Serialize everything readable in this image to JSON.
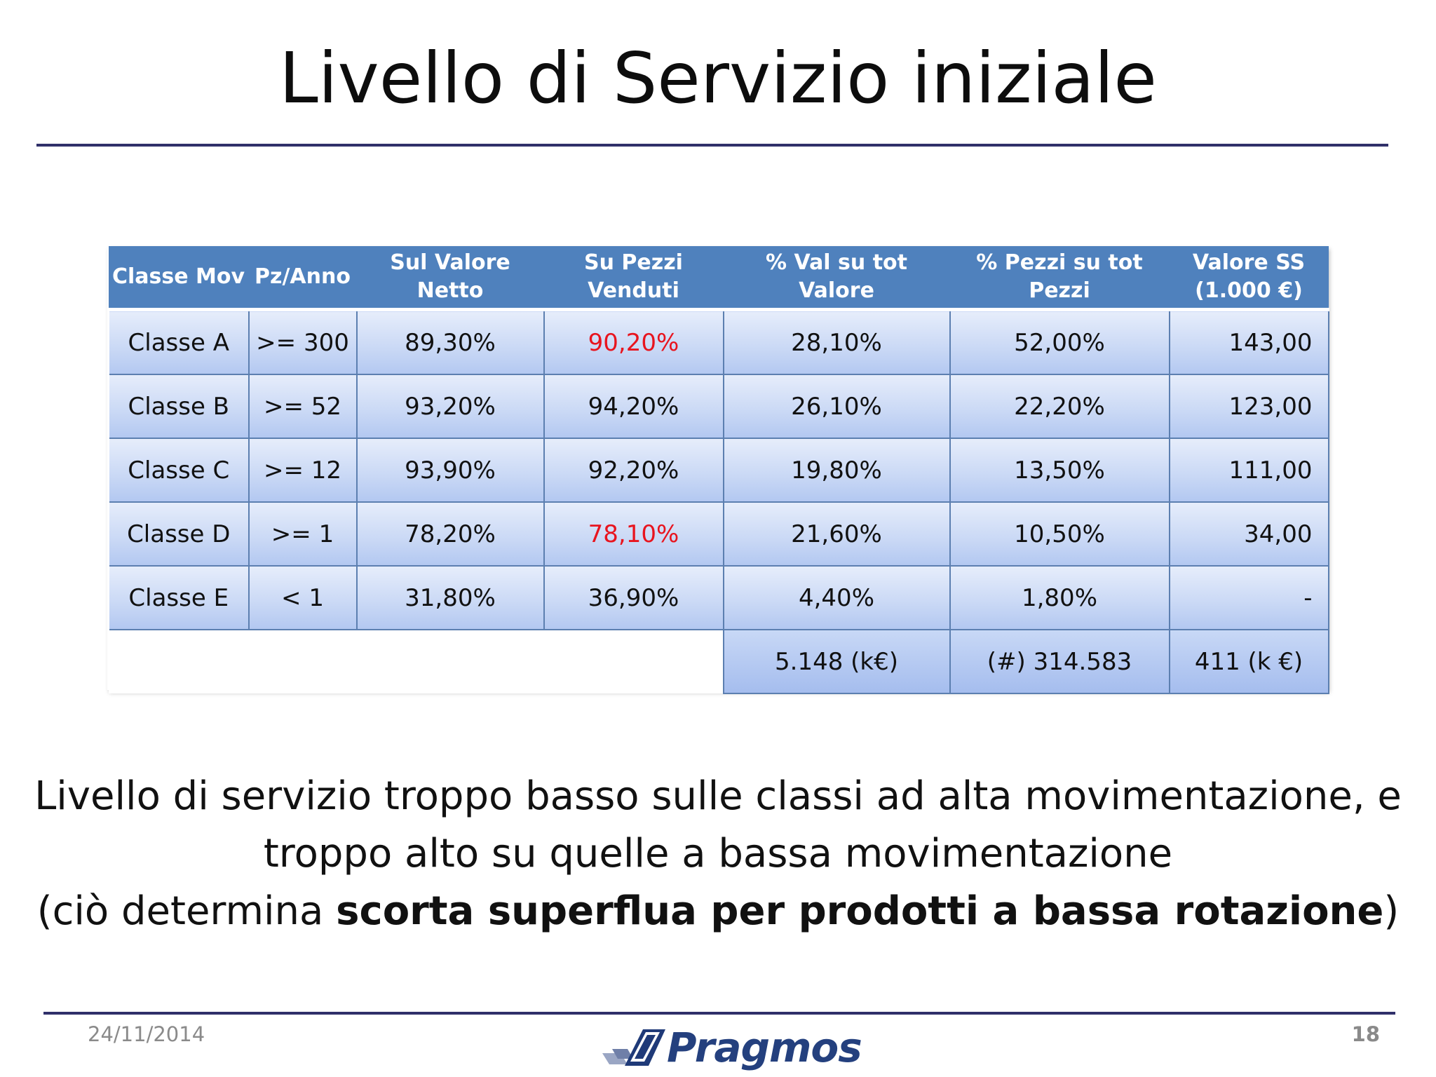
{
  "slide": {
    "title": "Livello di Servizio iniziale",
    "date": "24/11/2014",
    "page_number": "18",
    "logo_text": "Pragmos"
  },
  "table": {
    "headers": [
      "Classe Mov",
      "Pz/Anno",
      "Sul Valore Netto",
      "Su Pezzi Venduti",
      "% Val su tot Valore",
      "% Pezzi su tot Pezzi",
      "Valore SS",
      "(1.000 €)"
    ],
    "rows": [
      {
        "classe": "Classe A",
        "pz": ">= 300",
        "valore_netto": "89,30%",
        "pezzi_venduti": "90,20%",
        "val_tot": "28,10%",
        "pezzi_tot": "52,00%",
        "valore_ss": "143,00"
      },
      {
        "classe": "Classe B",
        "pz": ">= 52",
        "valore_netto": "93,20%",
        "pezzi_venduti": "94,20%",
        "val_tot": "26,10%",
        "pezzi_tot": "22,20%",
        "valore_ss": "123,00"
      },
      {
        "classe": "Classe C",
        "pz": ">= 12",
        "valore_netto": "93,90%",
        "pezzi_venduti": "92,20%",
        "val_tot": "19,80%",
        "pezzi_tot": "13,50%",
        "valore_ss": "111,00"
      },
      {
        "classe": "Classe D",
        "pz": ">= 1",
        "valore_netto": "78,20%",
        "pezzi_venduti": "78,10%",
        "val_tot": "21,60%",
        "pezzi_tot": "10,50%",
        "valore_ss": "34,00"
      },
      {
        "classe": "Classe E",
        "pz": "< 1",
        "valore_netto": "31,80%",
        "pezzi_venduti": "36,90%",
        "val_tot": "4,40%",
        "pezzi_tot": "1,80%",
        "valore_ss": "-"
      }
    ],
    "totals": {
      "val_tot": "5.148 (k€)",
      "pezzi_tot": "(#) 314.583",
      "valore_ss": "411 (k €)"
    },
    "highlight_color": "#e8141e"
  },
  "caption": {
    "line1": "Livello di servizio troppo basso sulle classi ad alta movimentazione, e",
    "line2": "troppo alto su quelle a bassa movimentazione",
    "line3_pre": "(ciò determina ",
    "line3_bold": "scorta superflua per prodotti a bassa rotazione",
    "line3_post": ")"
  }
}
